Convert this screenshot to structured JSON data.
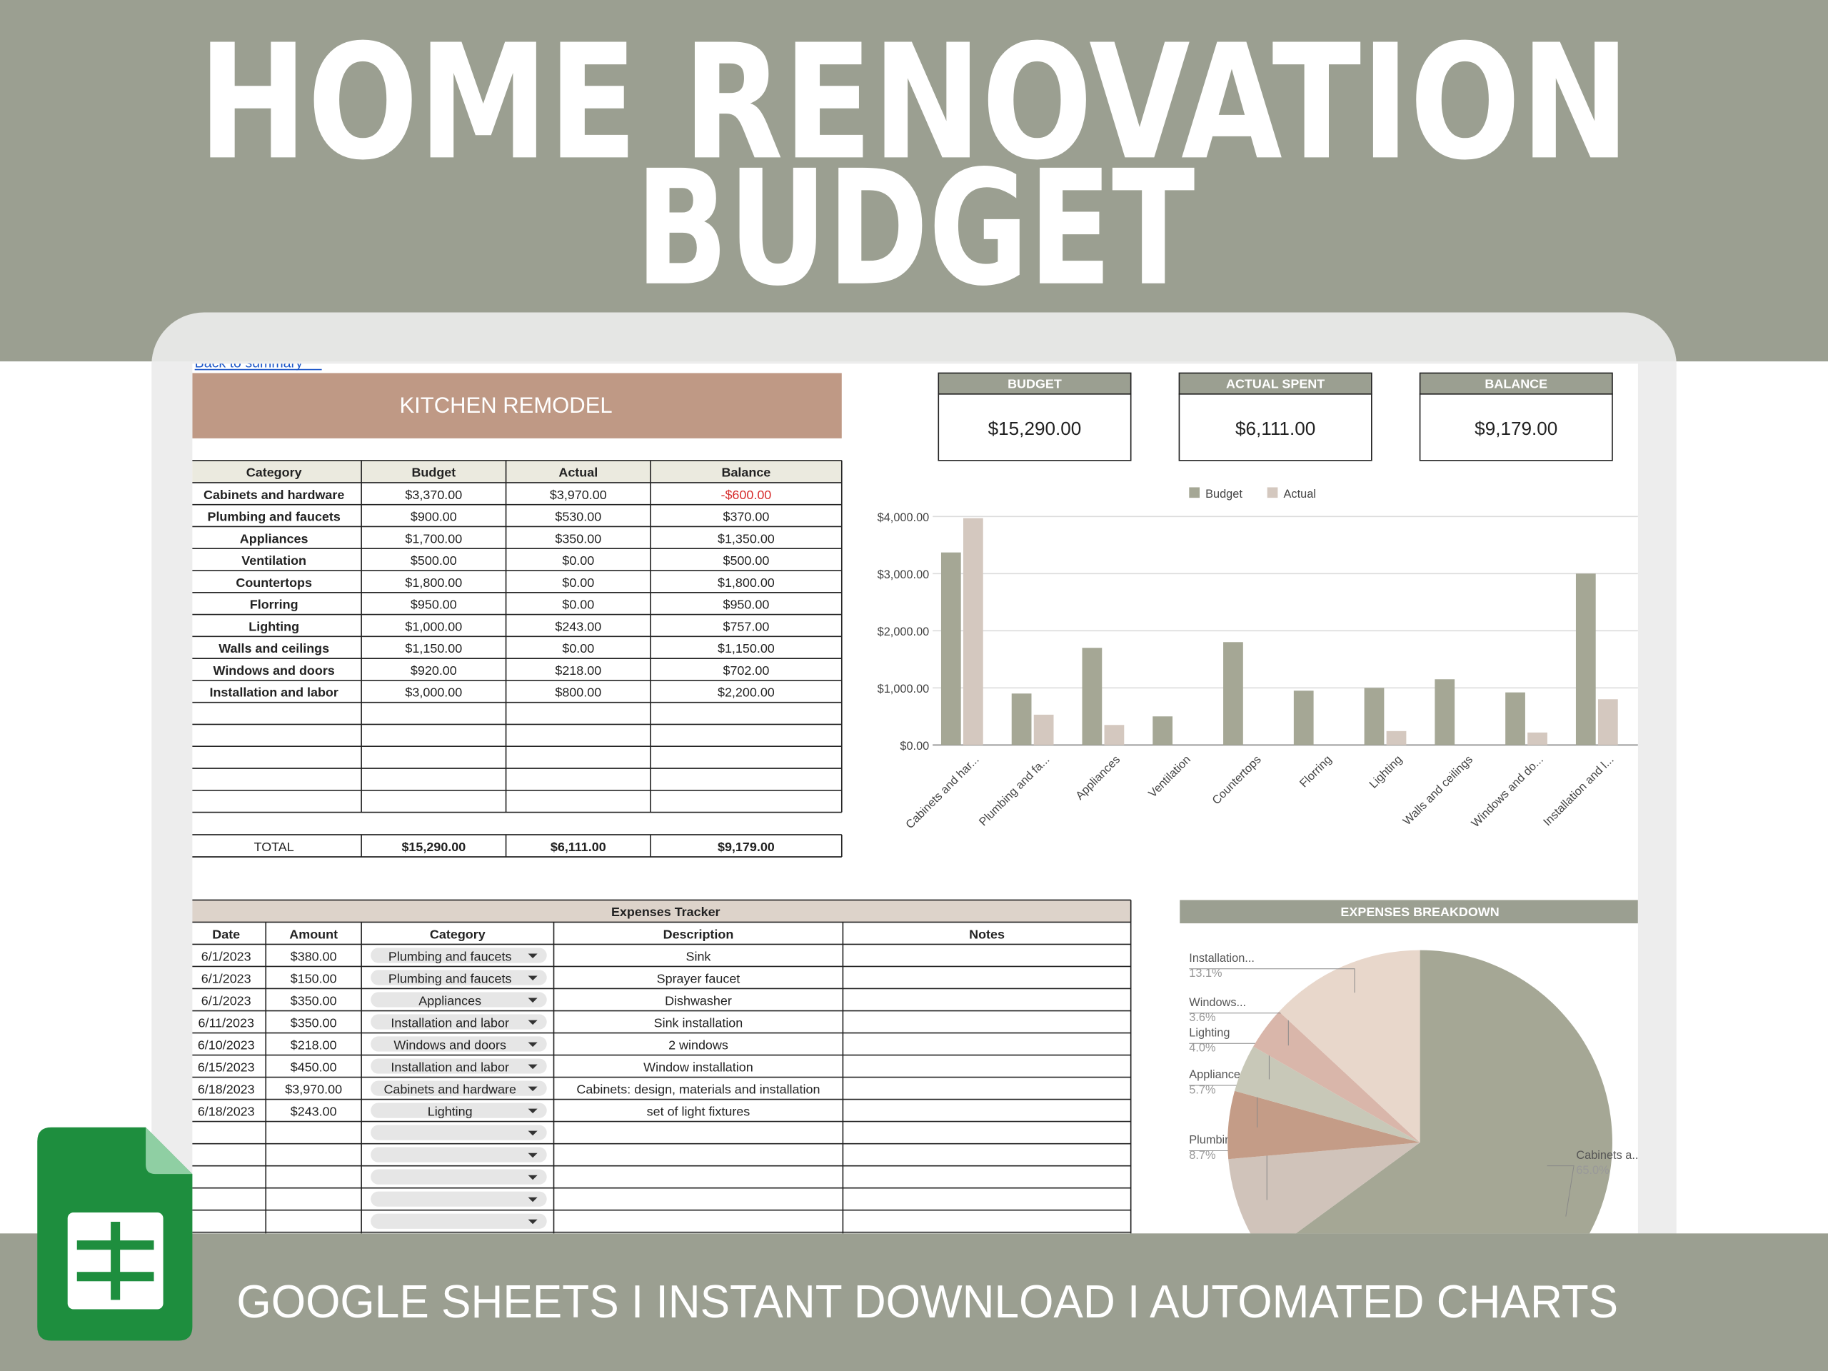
{
  "header": {
    "title_lines": [
      "HOME RENOVATION",
      "BUDGET"
    ]
  },
  "sheet": {
    "back_link": "Back to summary",
    "title": "KITCHEN REMODEL",
    "summary_cards": [
      {
        "label": "BUDGET",
        "value": "$15,290.00"
      },
      {
        "label": "ACTUAL SPENT",
        "value": "$6,111.00"
      },
      {
        "label": "BALANCE",
        "value": "$9,179.00"
      }
    ],
    "budget_table": {
      "columns": [
        "Category",
        "Budget",
        "Actual",
        "Balance"
      ],
      "rows": [
        [
          "Cabinets and hardware",
          "$3,370.00",
          "$3,970.00",
          "-$600.00"
        ],
        [
          "Plumbing and faucets",
          "$900.00",
          "$530.00",
          "$370.00"
        ],
        [
          "Appliances",
          "$1,700.00",
          "$350.00",
          "$1,350.00"
        ],
        [
          "Ventilation",
          "$500.00",
          "$0.00",
          "$500.00"
        ],
        [
          "Countertops",
          "$1,800.00",
          "$0.00",
          "$1,800.00"
        ],
        [
          "Florring",
          "$950.00",
          "$0.00",
          "$950.00"
        ],
        [
          "Lighting",
          "$1,000.00",
          "$243.00",
          "$757.00"
        ],
        [
          "Walls and ceilings",
          "$1,150.00",
          "$0.00",
          "$1,150.00"
        ],
        [
          "Windows and doors",
          "$920.00",
          "$218.00",
          "$702.00"
        ],
        [
          "Installation and labor",
          "$3,000.00",
          "$800.00",
          "$2,200.00"
        ]
      ],
      "total": [
        "TOTAL",
        "$15,290.00",
        "$6,111.00",
        "$9,179.00"
      ]
    },
    "expenses_tracker": {
      "title": "Expenses Tracker",
      "columns": [
        "Date",
        "Amount",
        "Category",
        "Description",
        "Notes"
      ],
      "rows": [
        [
          "6/1/2023",
          "$380.00",
          "Plumbing and faucets",
          "Sink"
        ],
        [
          "6/1/2023",
          "$150.00",
          "Plumbing and faucets",
          "Sprayer faucet"
        ],
        [
          "6/1/2023",
          "$350.00",
          "Appliances",
          "Dishwasher"
        ],
        [
          "6/11/2023",
          "$350.00",
          "Installation and labor",
          "Sink installation"
        ],
        [
          "6/10/2023",
          "$218.00",
          "Windows and doors",
          "2 windows"
        ],
        [
          "6/15/2023",
          "$450.00",
          "Installation and labor",
          "Window installation"
        ],
        [
          "6/18/2023",
          "$3,970.00",
          "Cabinets and hardware",
          "Cabinets: design, materials and installation"
        ],
        [
          "6/18/2023",
          "$243.00",
          "Lighting",
          "set of light fixtures"
        ]
      ]
    }
  },
  "chart_data": [
    {
      "type": "bar",
      "categories": [
        "Cabinets and har...",
        "Plumbing and fa...",
        "Appliances",
        "Ventilation",
        "Countertops",
        "Florring",
        "Lighting",
        "Walls and ceilings",
        "Windows and do...",
        "Installation and l..."
      ],
      "series": [
        {
          "name": "Budget",
          "color": "#a5a795",
          "values": [
            3370,
            900,
            1700,
            500,
            1800,
            950,
            1000,
            1150,
            920,
            3000
          ]
        },
        {
          "name": "Actual",
          "color": "#d4c8bf",
          "values": [
            3970,
            530,
            350,
            0,
            0,
            0,
            243,
            0,
            218,
            800
          ]
        }
      ],
      "ylim": [
        0,
        4000
      ],
      "yticks": [
        {
          "value": 0,
          "label": "$0.00"
        },
        {
          "value": 1000,
          "label": "$1,000.00"
        },
        {
          "value": 2000,
          "label": "$2,000.00"
        },
        {
          "value": 3000,
          "label": "$3,000.00"
        },
        {
          "value": 4000,
          "label": "$4,000.00"
        }
      ],
      "grid": true,
      "legend": "top"
    },
    {
      "type": "pie",
      "title": "EXPENSES BREAKDOWN",
      "categories": [
        "Cabinets a...",
        "Plumbing...",
        "Appliances",
        "Lighting",
        "Windows...",
        "Installation..."
      ],
      "values": [
        65.0,
        8.7,
        5.7,
        4.0,
        3.6,
        13.1
      ],
      "value_labels": [
        "65.0%",
        "8.7%",
        "5.7%",
        "4.0%",
        "3.6%",
        "13.1%"
      ],
      "colors": [
        "#a5a795",
        "#d0c3ba",
        "#c49c87",
        "#c8c8b8",
        "#d9b6aa",
        "#e8d7cb"
      ]
    }
  ],
  "footer": {
    "text": "GOOGLE SHEETS I INSTANT DOWNLOAD I AUTOMATED CHARTS"
  }
}
